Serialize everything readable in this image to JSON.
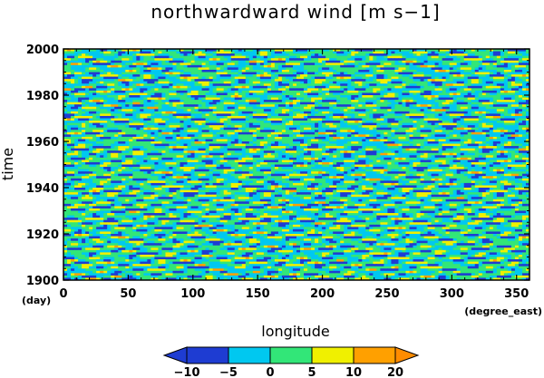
{
  "chart_data": {
    "type": "heatmap",
    "title": "northwardward wind [m s−1]",
    "xlabel": "longitude",
    "ylabel": "time",
    "x_unit": "(degree_east)",
    "y_unit": "(day)",
    "xlim": [
      0,
      360
    ],
    "ylim": [
      1900,
      2000
    ],
    "x_ticks": [
      "0",
      "50",
      "100",
      "150",
      "200",
      "250",
      "300",
      "350"
    ],
    "y_ticks": [
      "1900",
      "1920",
      "1940",
      "1960",
      "1980",
      "2000"
    ],
    "x_tick_values": [
      0,
      50,
      100,
      150,
      200,
      250,
      300,
      350
    ],
    "y_tick_values": [
      1900,
      1920,
      1940,
      1960,
      1980,
      2000
    ],
    "colorbar": {
      "levels": [
        -10,
        -5,
        0,
        5,
        10,
        20
      ],
      "labels": [
        "−10",
        "−5",
        "0",
        "5",
        "10",
        "20"
      ],
      "colors": [
        "#1e3cd2",
        "#00c8f0",
        "#32e678",
        "#f0f000",
        "#ffa000"
      ],
      "under_color": "#1e3cd2",
      "over_color": "#ff8c00",
      "extend": "both"
    }
  }
}
